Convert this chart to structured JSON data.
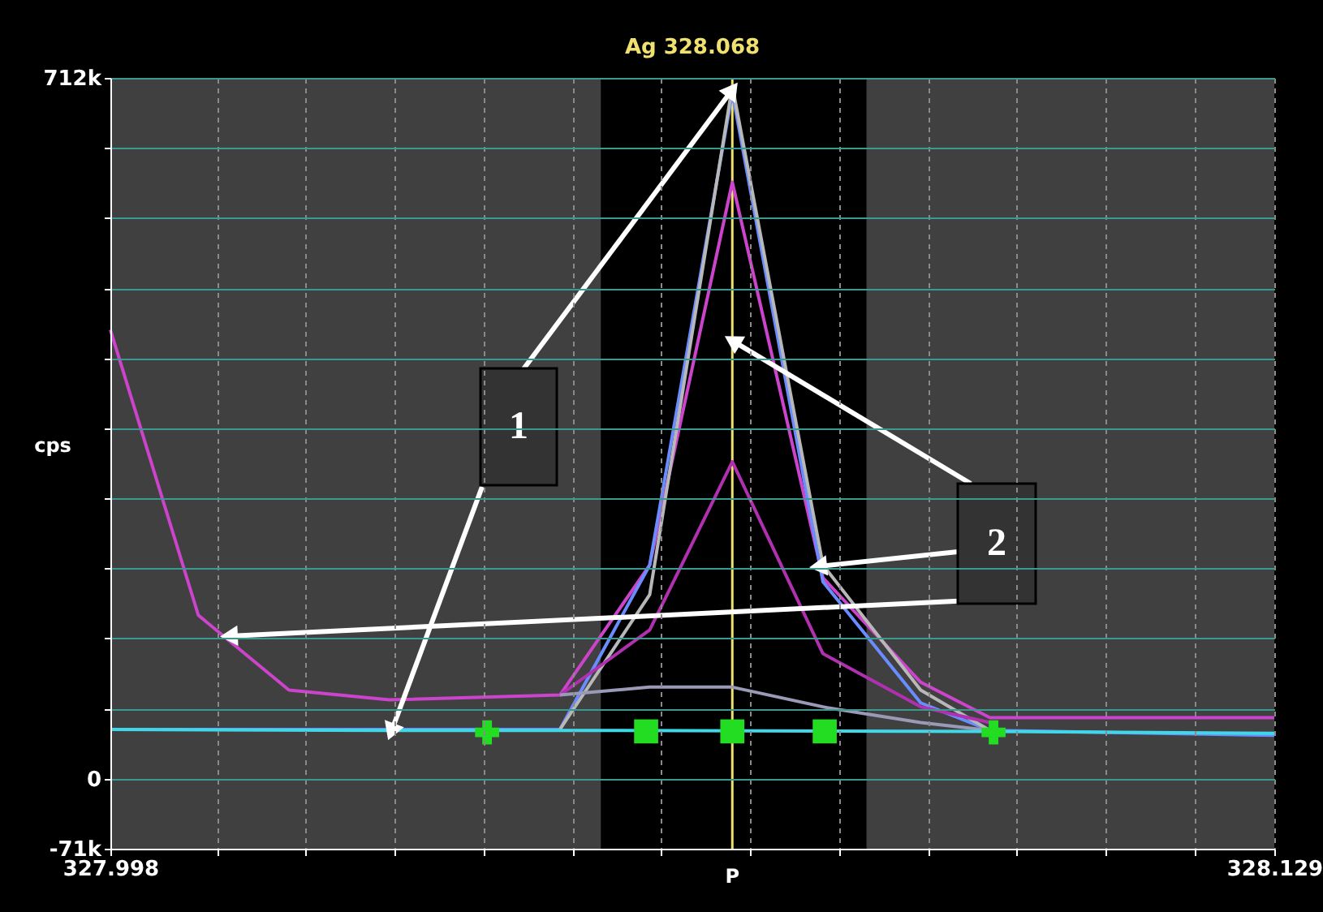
{
  "chart_data": {
    "type": "line",
    "title": "Ag 328.068",
    "ylabel": "cps",
    "xlim": [
      327.998,
      328.129
    ],
    "ylim": [
      -71200,
      712000
    ],
    "xticks": [
      327.998,
      {
        "value": 328.01,
        "label": null
      },
      {
        "value": 328.02,
        "label": null
      },
      {
        "value": 328.03,
        "label": null
      },
      {
        "value": 328.04,
        "label": null
      },
      {
        "value": 328.05,
        "label": null
      },
      {
        "value": 328.06,
        "label": null
      },
      {
        "value": 328.07,
        "label": null
      },
      {
        "value": 328.08,
        "label": null
      },
      {
        "value": 328.09,
        "label": null
      },
      {
        "value": 328.1,
        "label": null
      },
      {
        "value": 328.11,
        "label": null
      },
      {
        "value": 328.12,
        "label": null
      },
      328.129
    ],
    "yticks": [
      {
        "value": -71200,
        "label": "-71k"
      },
      0,
      {
        "value": 71200,
        "label": null
      },
      {
        "value": 142400,
        "label": null
      },
      {
        "value": 213600,
        "label": null
      },
      {
        "value": 284800,
        "label": null
      },
      {
        "value": 356000,
        "label": null
      },
      {
        "value": 427200,
        "label": null
      },
      {
        "value": 498400,
        "label": null
      },
      {
        "value": 569600,
        "label": null
      },
      {
        "value": 640800,
        "label": null
      },
      {
        "value": 712000,
        "label": "712k"
      }
    ],
    "grid": true,
    "bands": [
      {
        "axis": "x",
        "from": 328.0532,
        "to": 328.0831,
        "color": "#000000"
      }
    ],
    "ref_lines": [
      {
        "axis": "x",
        "value": 328.068,
        "label": "P",
        "color": "#f0e070"
      }
    ],
    "annotations": [
      {
        "text": "1",
        "x": 328.068,
        "y": 700000
      },
      {
        "text": "2",
        "x": 328.068,
        "y": 445000
      }
    ],
    "series": [
      {
        "color": "#cc44cc",
        "x": [
          327.998,
          328.0079,
          328.0181,
          328.0294,
          328.0486,
          328.0587,
          328.068,
          328.0782,
          328.0892,
          328.097,
          328.129
        ],
        "values": [
          456000,
          166000,
          90000,
          80000,
          85000,
          217000,
          606000,
          204000,
          98000,
          62000,
          62000
        ]
      },
      {
        "color": "#6a8cff",
        "x": [
          327.998,
          328.0294,
          328.0486,
          328.0587,
          328.068,
          328.0782,
          328.0892,
          328.097,
          328.129
        ],
        "values": [
          50000,
          50000,
          50000,
          217000,
          697000,
          200000,
          77000,
          49000,
          44000
        ]
      },
      {
        "color": "#b8b8b8",
        "x": [
          328.0486,
          328.0587,
          328.068,
          328.0782,
          328.0892,
          328.097
        ],
        "values": [
          50000,
          187000,
          704000,
          217000,
          90000,
          49000
        ]
      },
      {
        "color": "#b030b0",
        "x": [
          328.0486,
          328.0587,
          328.068,
          328.0782,
          328.0892,
          328.097
        ],
        "values": [
          85000,
          151000,
          322000,
          127000,
          73000,
          57000
        ]
      },
      {
        "color": "#9a9ab8",
        "x": [
          328.0486,
          328.0587,
          328.068,
          328.0787,
          328.0892,
          328.097
        ],
        "values": [
          85000,
          93000,
          93000,
          72000,
          57000,
          49000
        ]
      },
      {
        "color": "#40d8e8",
        "x": [
          327.998,
          328.0294,
          328.0486,
          328.097,
          328.129
        ],
        "values": [
          50000,
          49000,
          49000,
          48000,
          46000
        ]
      },
      {
        "type": "scatter",
        "marker": "cross",
        "color": "#22dd22",
        "x": [
          328.0404,
          328.0974
        ],
        "values": [
          47000,
          47000
        ]
      },
      {
        "type": "scatter",
        "marker": "square",
        "color": "#22dd22",
        "x": [
          328.0583,
          328.068,
          328.0784
        ],
        "values": [
          48000,
          48000,
          48000
        ]
      }
    ]
  }
}
